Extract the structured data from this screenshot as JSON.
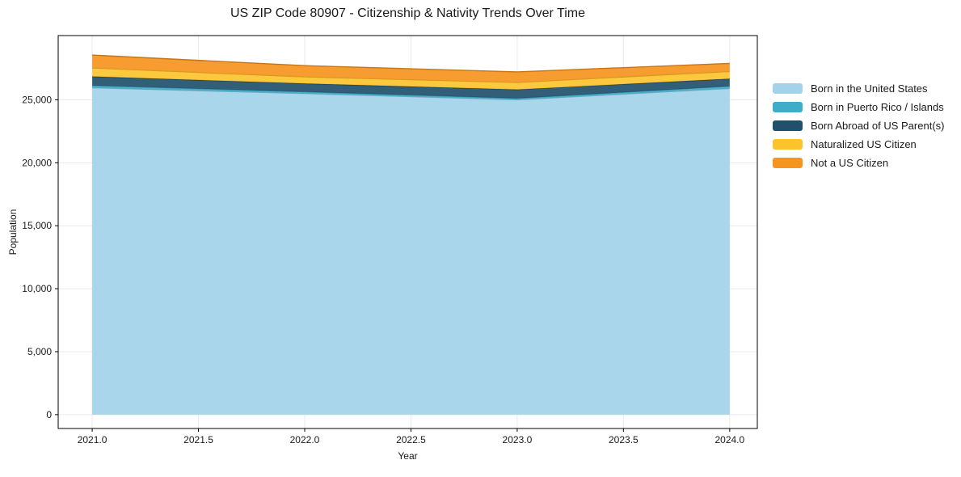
{
  "figure": {
    "background_color": "#ffffff"
  },
  "chart_data": {
    "type": "area",
    "stacked": true,
    "title": "US ZIP Code 80907 - Citizenship & Nativity Trends Over Time",
    "xlabel": "Year",
    "ylabel": "Population",
    "x": [
      2021,
      2022,
      2023,
      2024
    ],
    "series": [
      {
        "name": "Born in the United States",
        "color": "#a3d2ea",
        "values": [
          25950,
          25500,
          25000,
          25900
        ]
      },
      {
        "name": "Born in Puerto Rico / Islands",
        "color": "#3fadc9",
        "values": [
          180,
          140,
          120,
          180
        ]
      },
      {
        "name": "Born Abroad of US Parent(s)",
        "color": "#21506b",
        "values": [
          720,
          650,
          700,
          590
        ]
      },
      {
        "name": "Naturalized US Citizen",
        "color": "#fcc32d",
        "values": [
          680,
          530,
          560,
          580
        ]
      },
      {
        "name": "Not a US Citizen",
        "color": "#f5941e",
        "values": [
          1020,
          890,
          840,
          640
        ]
      }
    ],
    "totals_by_year": [
      28550,
      27710,
      27220,
      27890
    ],
    "xticks": [
      2021.0,
      2021.5,
      2022.0,
      2022.5,
      2023.0,
      2023.5,
      2024.0
    ],
    "xtick_labels": [
      "2021.0",
      "2021.5",
      "2022.0",
      "2022.5",
      "2023.0",
      "2023.5",
      "2024.0"
    ],
    "yticks": [
      0,
      5000,
      10000,
      15000,
      20000,
      25000
    ],
    "ytick_labels": [
      "0",
      "5,000",
      "10,000",
      "15,000",
      "20,000",
      "25,000"
    ],
    "xlim": [
      2020.84,
      2024.13
    ],
    "ylim": [
      -1100,
      30100
    ],
    "grid": true,
    "grid_color": "#e9e9e9",
    "axis_color": "#000000",
    "text_color": "#1a1a1a",
    "legend_position": "right"
  }
}
